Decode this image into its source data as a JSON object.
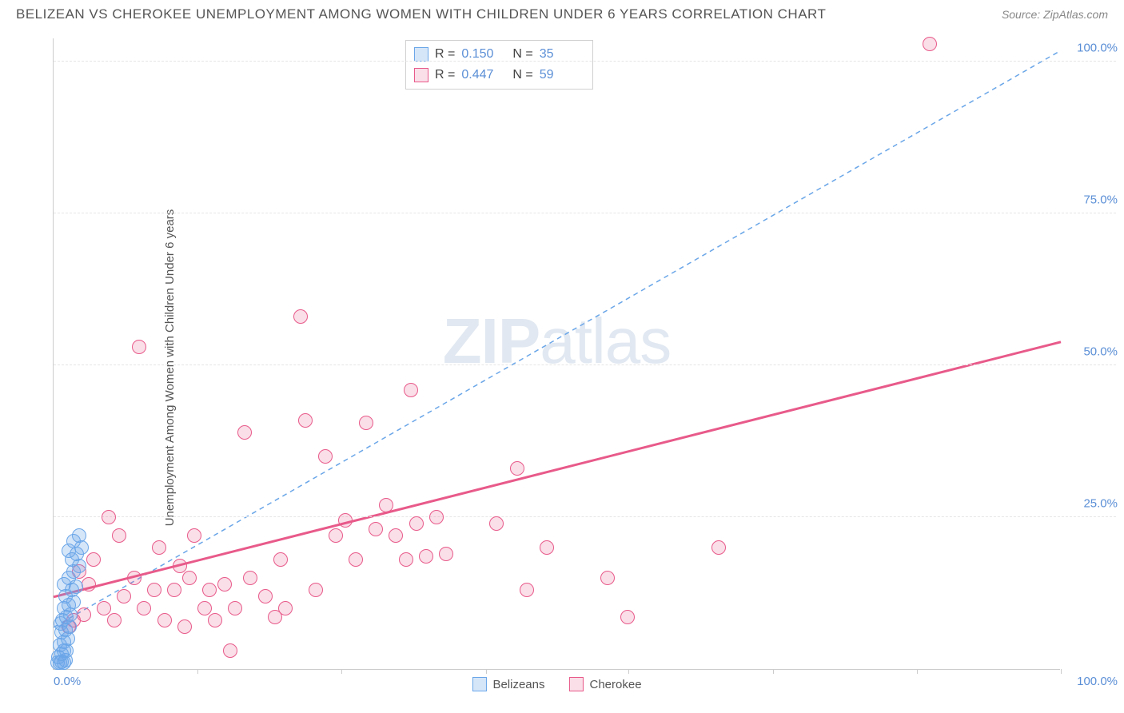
{
  "header": {
    "title": "BELIZEAN VS CHEROKEE UNEMPLOYMENT AMONG WOMEN WITH CHILDREN UNDER 6 YEARS CORRELATION CHART",
    "source_prefix": "Source: ",
    "source": "ZipAtlas.com"
  },
  "watermark": {
    "zip": "ZIP",
    "atlas": "atlas"
  },
  "chart": {
    "type": "scatter",
    "ylabel": "Unemployment Among Women with Children Under 6 years",
    "xlim": [
      0,
      100
    ],
    "ylim": [
      0,
      104
    ],
    "xtick_positions": [
      0,
      14.3,
      28.6,
      42.9,
      57.1,
      71.4,
      85.7,
      100
    ],
    "xtick_labels_shown": {
      "left": "0.0%",
      "right": "100.0%"
    },
    "ytick_positions": [
      25,
      50,
      75,
      100
    ],
    "ytick_labels": [
      "25.0%",
      "50.0%",
      "75.0%",
      "100.0%"
    ],
    "grid_color": "#e5e5e5",
    "axis_color": "#cccccc",
    "tick_label_color": "#5b8fd6",
    "background_color": "#ffffff",
    "point_radius": 9,
    "series": {
      "belizeans": {
        "label": "Belizeans",
        "R": "0.150",
        "N": "35",
        "color_stroke": "#6aa6e8",
        "color_fill": "rgba(106,166,232,0.28)",
        "trend": {
          "x1": 0,
          "y1": 7,
          "x2": 100,
          "y2": 102,
          "dash": "6,5",
          "width": 1.5
        },
        "points": [
          [
            0.4,
            1.0
          ],
          [
            0.6,
            1.0
          ],
          [
            0.8,
            1.2
          ],
          [
            1.0,
            1.0
          ],
          [
            1.2,
            1.5
          ],
          [
            0.5,
            2.0
          ],
          [
            0.8,
            2.5
          ],
          [
            1.0,
            3.0
          ],
          [
            1.3,
            3.0
          ],
          [
            0.6,
            4.0
          ],
          [
            1.0,
            4.5
          ],
          [
            1.4,
            5.0
          ],
          [
            0.8,
            6.0
          ],
          [
            1.2,
            6.5
          ],
          [
            1.6,
            7.0
          ],
          [
            0.9,
            8.0
          ],
          [
            1.3,
            8.5
          ],
          [
            1.7,
            9.0
          ],
          [
            1.0,
            10.0
          ],
          [
            1.5,
            10.5
          ],
          [
            2.0,
            11.0
          ],
          [
            1.2,
            12.0
          ],
          [
            1.8,
            13.0
          ],
          [
            2.2,
            13.5
          ],
          [
            1.5,
            15.0
          ],
          [
            2.0,
            16.0
          ],
          [
            2.5,
            17.0
          ],
          [
            1.8,
            18.0
          ],
          [
            2.3,
            19.0
          ],
          [
            2.8,
            20.0
          ],
          [
            2.0,
            21.0
          ],
          [
            2.5,
            22.0
          ],
          [
            1.5,
            19.5
          ],
          [
            1.0,
            14.0
          ],
          [
            0.7,
            7.5
          ]
        ]
      },
      "cherokee": {
        "label": "Cherokee",
        "R": "0.447",
        "N": "59",
        "color_stroke": "#e85a8a",
        "color_fill": "rgba(232,90,138,0.20)",
        "trend": {
          "x1": 0,
          "y1": 12,
          "x2": 100,
          "y2": 54,
          "dash": "none",
          "width": 3
        },
        "points": [
          [
            1.5,
            7.0
          ],
          [
            2.0,
            8.0
          ],
          [
            3.0,
            9.0
          ],
          [
            3.5,
            14.0
          ],
          [
            4.0,
            18.0
          ],
          [
            5.0,
            10.0
          ],
          [
            5.5,
            25.0
          ],
          [
            6.0,
            8.0
          ],
          [
            6.5,
            22.0
          ],
          [
            7.0,
            12.0
          ],
          [
            8.0,
            15.0
          ],
          [
            8.5,
            53.0
          ],
          [
            9.0,
            10.0
          ],
          [
            10.0,
            13.0
          ],
          [
            10.5,
            20.0
          ],
          [
            11.0,
            8.0
          ],
          [
            12.0,
            13.0
          ],
          [
            12.5,
            17.0
          ],
          [
            13.0,
            7.0
          ],
          [
            13.5,
            15.0
          ],
          [
            14.0,
            22.0
          ],
          [
            15.0,
            10.0
          ],
          [
            15.5,
            13.0
          ],
          [
            16.0,
            8.0
          ],
          [
            17.0,
            14.0
          ],
          [
            17.5,
            3.0
          ],
          [
            18.0,
            10.0
          ],
          [
            19.0,
            39.0
          ],
          [
            19.5,
            15.0
          ],
          [
            21.0,
            12.0
          ],
          [
            22.0,
            8.5
          ],
          [
            22.5,
            18.0
          ],
          [
            23.0,
            10.0
          ],
          [
            24.5,
            58.0
          ],
          [
            25.0,
            41.0
          ],
          [
            26.0,
            13.0
          ],
          [
            27.0,
            35.0
          ],
          [
            28.0,
            22.0
          ],
          [
            29.0,
            24.5
          ],
          [
            30.0,
            18.0
          ],
          [
            31.0,
            40.5
          ],
          [
            32.0,
            23.0
          ],
          [
            33.0,
            27.0
          ],
          [
            34.0,
            22.0
          ],
          [
            35.0,
            18.0
          ],
          [
            35.5,
            46.0
          ],
          [
            36.0,
            24.0
          ],
          [
            37.0,
            18.5
          ],
          [
            38.0,
            25.0
          ],
          [
            39.0,
            19.0
          ],
          [
            44.0,
            24.0
          ],
          [
            46.0,
            33.0
          ],
          [
            47.0,
            13.0
          ],
          [
            49.0,
            20.0
          ],
          [
            55.0,
            15.0
          ],
          [
            57.0,
            8.5
          ],
          [
            66.0,
            20.0
          ],
          [
            87.0,
            103.0
          ],
          [
            2.5,
            16.0
          ]
        ]
      }
    },
    "stat_box": {
      "r_label": "R  =",
      "n_label": "N  ="
    },
    "bottom_legend": true
  }
}
